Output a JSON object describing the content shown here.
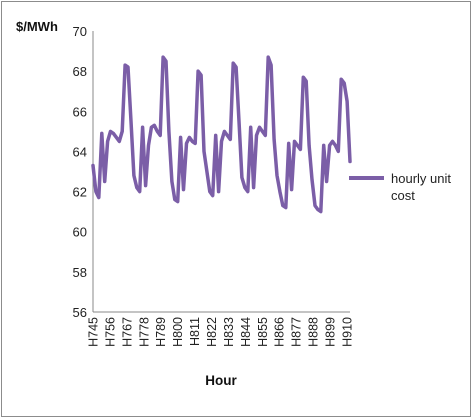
{
  "chart_data": {
    "type": "line",
    "ylabel": "$/MWh",
    "xlabel": "Hour",
    "ylim": [
      56,
      70
    ],
    "yticks": [
      56,
      58,
      60,
      62,
      64,
      66,
      68,
      70
    ],
    "grid": false,
    "legend_position": "right",
    "x_start_hour": 745,
    "x_end_hour": 912,
    "xtick_labels": [
      "H745",
      "H756",
      "H767",
      "H778",
      "H789",
      "H800",
      "H811",
      "H822",
      "H833",
      "H844",
      "H855",
      "H866",
      "H877",
      "H888",
      "H899",
      "H910"
    ],
    "series": [
      {
        "name": "hourly unit cost",
        "color": "#7b5ea7",
        "values": [
          63.3,
          62.0,
          61.7,
          64.9,
          62.5,
          64.5,
          65.0,
          64.9,
          64.7,
          64.5,
          65.0,
          68.3,
          68.2,
          65.5,
          62.8,
          62.2,
          62.0,
          65.2,
          62.3,
          64.3,
          65.2,
          65.3,
          65.0,
          64.8,
          68.7,
          68.5,
          65.0,
          62.5,
          61.6,
          61.5,
          64.7,
          62.1,
          64.4,
          64.7,
          64.5,
          64.4,
          68.0,
          67.8,
          64.0,
          63.0,
          62.0,
          61.8,
          64.8,
          62.0,
          64.5,
          65.0,
          64.8,
          64.6,
          68.4,
          68.2,
          65.5,
          62.7,
          62.2,
          62.0,
          65.2,
          62.2,
          64.8,
          65.2,
          65.0,
          64.8,
          68.7,
          68.3,
          64.6,
          62.8,
          62.0,
          61.3,
          61.2,
          64.4,
          62.1,
          64.5,
          64.3,
          64.1,
          67.7,
          67.5,
          64.3,
          62.6,
          61.3,
          61.1,
          61.0,
          64.3,
          62.5,
          64.3,
          64.5,
          64.3,
          64.0,
          67.6,
          67.4,
          66.5,
          63.5
        ]
      }
    ]
  }
}
